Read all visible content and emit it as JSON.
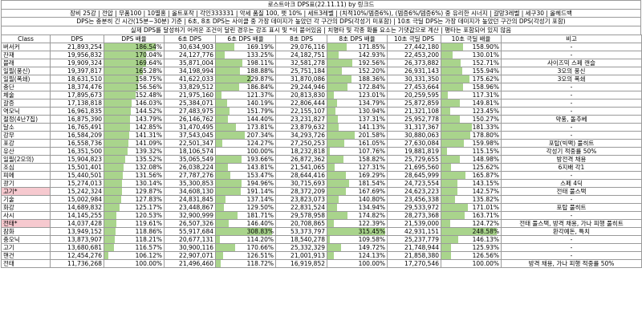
{
  "title": "로스트아크 DPS표(22.11.11) by 링크드",
  "info_lines": [
    "장비 25강 | 전압 | 무품100 | 10멸홍 | 올트포작 | 각인333331 | 악세 품질 100, 펫 10% | 세트3레벨 | (치적10%/뎀증6%), (뎀증6%/뎀증6%) 중 유리한 시너지 | 갈망3레벨 | 세구30 | 올헤드백",
    "DPS는 충분히 긴 시간(15분~30분) 기준 | 6초, 8초 DPS는 사이클 중 가장 데미지가 높았던 각 구간의 DPS(각성기 미포함) | 10초 극딜 DPS는 가장 데미지가 높았던 구간의 DPS(각성기 포함)",
    "실제 DPS를 달성하기 어려운 조건이 달린 경우는 강조 표시 및 *이 붙어있음 | 치명타 및 각종 확률 요소는 기댓값으로 계산 | 평타는 포함되어 있지 않음"
  ],
  "columns": [
    "Class",
    "DPS",
    "DPS 배율",
    "6초 DPS",
    "6초 DPS 배율",
    "8초 DPS",
    "8초 DPS 배율",
    "10초 극딜 DPS",
    "10초 극딜 배율",
    "비고"
  ],
  "rows": [
    {
      "cls": "버서커",
      "dps": "21,893,254",
      "r1": "186.54%",
      "dps6": "30,634,903",
      "r6": "169.19%",
      "dps8": "29,076,116",
      "r8": "171.85%",
      "dps10": "27,442,180",
      "r10": "158.90%",
      "note": "-"
    },
    {
      "cls": "잔재",
      "dps": "19,956,832",
      "r1": "170.04%",
      "dps6": "24,127,776",
      "r6": "133.25%",
      "dps8": "24,182,751",
      "r8": "142.93%",
      "dps10": "22,453,200",
      "r10": "130.01%",
      "note": "-"
    },
    {
      "cls": "블래",
      "dps": "19,909,324",
      "r1": "169.64%",
      "dps6": "35,871,004",
      "r6": "198.11%",
      "dps8": "32,581,278",
      "r8": "192.56%",
      "dps10": "26,373,882",
      "r10": "152.71%",
      "note": "사이즈믹 스페 캔슬"
    },
    {
      "cls": "일필(풍신)",
      "dps": "19,397,817",
      "r1": "165.28%",
      "dps6": "34,198,994",
      "r6": "188.88%",
      "dps8": "25,751,184",
      "r8": "152.20%",
      "dps10": "26,931,143",
      "r10": "155.94%",
      "note": "3오의 풍신"
    },
    {
      "cls": "일필(폭쇄)",
      "dps": "18,631,510",
      "r1": "158.75%",
      "dps6": "41,622,033",
      "r6": "229.87%",
      "dps8": "31,870,086",
      "r8": "188.36%",
      "dps10": "30,331,350",
      "r10": "175.62%",
      "note": "3오의 폭쇄"
    },
    {
      "cls": "충단",
      "dps": "18,374,476",
      "r1": "156.56%",
      "dps6": "33,829,512",
      "r6": "186.84%",
      "dps8": "29,244,946",
      "r8": "172.84%",
      "dps10": "27,453,664",
      "r10": "158.96%",
      "note": "-"
    },
    {
      "cls": "체술",
      "dps": "17,895,673",
      "r1": "152.48%",
      "dps6": "21,975,160",
      "r6": "121.37%",
      "dps8": "20,813,830",
      "r8": "123.01%",
      "dps10": "20,259,595",
      "r10": "117.31%",
      "note": "-"
    },
    {
      "cls": "갈증",
      "dps": "17,138,818",
      "r1": "146.03%",
      "dps6": "25,384,071",
      "r6": "140.19%",
      "dps8": "22,806,444",
      "r8": "134.79%",
      "dps10": "25,872,859",
      "r10": "149.81%",
      "note": "-"
    },
    {
      "cls": "역모닉",
      "dps": "16,961,835",
      "r1": "144.52%",
      "dps6": "27,483,975",
      "r6": "151.79%",
      "dps8": "22,155,107",
      "r8": "130.94%",
      "dps10": "21,321,108",
      "r10": "123.45%",
      "note": "-"
    },
    {
      "cls": "절정(4난7집)",
      "dps": "16,875,390",
      "r1": "143.79%",
      "dps6": "26,146,762",
      "r6": "144.40%",
      "dps8": "23,231,827",
      "r8": "137.31%",
      "dps10": "25,952,778",
      "r10": "150.27%",
      "note": "약풍, 돌추베"
    },
    {
      "cls": "달소",
      "dps": "16,765,491",
      "r1": "142.85%",
      "dps6": "31,470,495",
      "r6": "173.81%",
      "dps8": "23,879,632",
      "r8": "141.13%",
      "dps10": "31,317,367",
      "r10": "181.33%",
      "note": "-"
    },
    {
      "cls": "강무",
      "dps": "16,584,209",
      "r1": "141.31%",
      "dps6": "37,543,045",
      "r6": "207.34%",
      "dps8": "34,293,726",
      "r8": "201.58%",
      "dps10": "30,880,063",
      "r10": "178.80%",
      "note": "-"
    },
    {
      "cls": "포강",
      "dps": "16,558,736",
      "r1": "141.09%",
      "dps6": "22,501,347",
      "r6": "124.27%",
      "dps8": "27,250,253",
      "r8": "161.05%",
      "dps10": "27,630,084",
      "r10": "159.98%",
      "note": "포탑(빅팩) 풀히트"
    },
    {
      "cls": "유산",
      "dps": "16,351,500",
      "r1": "139.32%",
      "dps6": "18,106,574",
      "r6": "100.00%",
      "dps8": "18,232,818",
      "r8": "107.76%",
      "dps10": "19,881,819",
      "r10": "115.15%",
      "note": "각성기 적중률 50%"
    },
    {
      "cls": "일필(2오의)",
      "dps": "15,904,823",
      "r1": "135.52%",
      "dps6": "35,065,549",
      "r6": "193.66%",
      "dps8": "26,872,362",
      "r8": "158.82%",
      "dps10": "25,729,655",
      "r10": "148.98%",
      "note": "방전격 채용"
    },
    {
      "cls": "조심",
      "dps": "15,501,401",
      "r1": "132.08%",
      "dps6": "26,038,224",
      "r6": "143.81%",
      "dps8": "21,541,065",
      "r8": "127.31%",
      "dps10": "21,695,560",
      "r10": "125.62%",
      "note": "6지배 각1"
    },
    {
      "cls": "피메",
      "dps": "15,440,501",
      "r1": "131.56%",
      "dps6": "27,787,276",
      "r6": "153.47%",
      "dps8": "28,644,416",
      "r8": "169.29%",
      "dps10": "28,645,999",
      "r10": "165.87%",
      "note": "-"
    },
    {
      "cls": "광기",
      "dps": "15,274,013",
      "r1": "130.14%",
      "dps6": "35,300,853",
      "r6": "194.96%",
      "dps8": "30,715,693",
      "r8": "181.54%",
      "dps10": "24,723,554",
      "r10": "143.15%",
      "note": "스페 4딕"
    },
    {
      "cls": "고기*",
      "dps": "15,242,324",
      "r1": "129.87%",
      "dps6": "34,608,130",
      "r6": "191.14%",
      "dps8": "28,372,209",
      "r8": "167.69%",
      "dps10": "24,623,223",
      "r10": "142.57%",
      "note": "전태 풀스택",
      "pink": true
    },
    {
      "cls": "기술",
      "dps": "15,002,984",
      "r1": "127.83%",
      "dps6": "24,831,845",
      "r6": "137.14%",
      "dps8": "23,823,073",
      "r8": "140.80%",
      "dps10": "23,456,338",
      "r10": "135.82%",
      "note": "-"
    },
    {
      "cls": "화강",
      "dps": "14,689,832",
      "r1": "125.17%",
      "dps6": "23,448,867",
      "r6": "129.50%",
      "dps8": "22,831,524",
      "r8": "134.94%",
      "dps10": "29,533,972",
      "r10": "171.01%",
      "note": "포탑 풀히트"
    },
    {
      "cls": "사시",
      "dps": "14,145,255",
      "r1": "120.53%",
      "dps6": "32,900,999",
      "r6": "181.71%",
      "dps8": "29,578,958",
      "r8": "174.82%",
      "dps10": "28,273,368",
      "r10": "163.71%",
      "note": "-"
    },
    {
      "cls": "전태*",
      "dps": "14,037,428",
      "r1": "119.61%",
      "dps6": "26,507,326",
      "r6": "146.40%",
      "dps8": "20,708,865",
      "r8": "122.39%",
      "dps10": "21,539,000",
      "r10": "124.72%",
      "note": "전태 풀스택, 방격 채용, 가나 피행 풀히트",
      "pink": true
    },
    {
      "cls": "잠화",
      "dps": "13,949,152",
      "r1": "118.86%",
      "dps6": "55,917,684",
      "r6": "308.83%",
      "dps8": "53,373,797",
      "r8": "315.45%",
      "dps10": "42,931,151",
      "r10": "248.58%",
      "note": "환각예돈, 특치"
    },
    {
      "cls": "충오닉",
      "dps": "13,873,907",
      "r1": "118.21%",
      "dps6": "20,677,131",
      "r6": "114.20%",
      "dps8": "18,540,278",
      "r8": "109.58%",
      "dps10": "25,237,779",
      "r10": "146.13%",
      "note": "-"
    },
    {
      "cls": "고기",
      "dps": "13,680,681",
      "r1": "116.57%",
      "dps6": "30,900,116",
      "r6": "170.66%",
      "dps8": "25,332,329",
      "r8": "149.72%",
      "dps10": "21,748,944",
      "r10": "125.93%",
      "note": "-"
    },
    {
      "cls": "핸건",
      "dps": "12,454,276",
      "r1": "106.12%",
      "dps6": "22,907,071",
      "r6": "126.51%",
      "dps8": "21,001,913",
      "r8": "124.13%",
      "dps10": "21,858,380",
      "r10": "126.56%",
      "note": "-"
    },
    {
      "cls": "전태",
      "dps": "11,736,268",
      "r1": "100.00%",
      "dps6": "21,496,460",
      "r6": "118.72%",
      "dps8": "16,919,852",
      "r8": "100.00%",
      "dps10": "17,270,546",
      "r10": "100.00%",
      "note": "방격 채용, 가나 피행 적중률 50%"
    }
  ]
}
